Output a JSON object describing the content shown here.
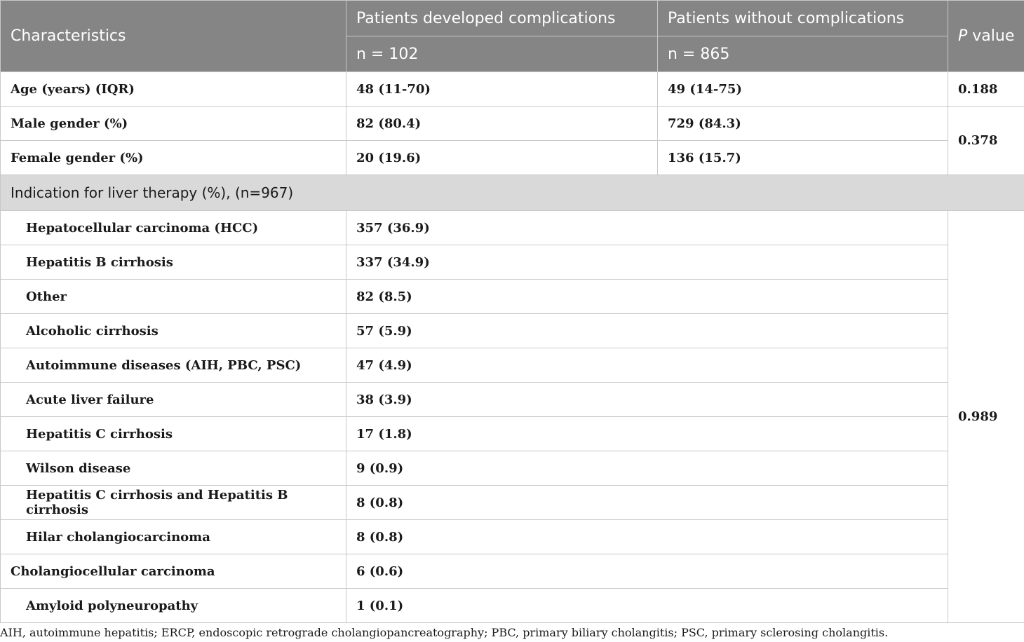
{
  "headers": {
    "characteristics": "Characteristics",
    "group1": "Patients developed complications",
    "group1_n": "n = 102",
    "group2": "Patients without complications",
    "group2_n": "n = 865",
    "pvalue_italic": "P",
    "pvalue_rest": " value"
  },
  "demographics": [
    {
      "label": "Age (years) (IQR)",
      "g1": "48 (11-70)",
      "g2": "49 (14-75)",
      "p": "0.188"
    },
    {
      "label": "Male gender (%)",
      "g1": "82 (80.4)",
      "g2": "729 (84.3)"
    },
    {
      "label": "Female gender (%)",
      "g1": "20 (19.6)",
      "g2": "136 (15.7)"
    }
  ],
  "gender_p": "0.378",
  "section_title": "Indication for liver therapy (%), (n=967)",
  "indications": [
    {
      "label": "Hepatocellular carcinoma (HCC)",
      "value": "357 (36.9)"
    },
    {
      "label": "Hepatitis B cirrhosis",
      "value": "337 (34.9)"
    },
    {
      "label": "Other",
      "value": "82 (8.5)"
    },
    {
      "label": "Alcoholic cirrhosis",
      "value": "57 (5.9)"
    },
    {
      "label": "Autoimmune diseases (AIH, PBC, PSC)",
      "value": "47 (4.9)"
    },
    {
      "label": "Acute liver failure",
      "value": "38 (3.9)"
    },
    {
      "label": "Hepatitis C cirrhosis",
      "value": "17 (1.8)"
    },
    {
      "label": "Wilson disease",
      "value": "9 (0.9)"
    },
    {
      "label": "Hepatitis C cirrhosis and Hepatitis B cirrhosis",
      "value": "8 (0.8)"
    },
    {
      "label": "Hilar cholangiocarcinoma",
      "value": "8 (0.8)"
    },
    {
      "label": "Cholangiocellular carcinoma",
      "value": "6 (0.6)"
    },
    {
      "label": "Amyloid polyneuropathy",
      "value": "1 (0.1)"
    }
  ],
  "indication_p": "0.989",
  "footnote": "AIH, autoimmune hepatitis; ERCP, endoscopic retrograde cholangiopancreatography; PBC, primary biliary cholangitis; PSC, primary sclerosing cholangitis."
}
